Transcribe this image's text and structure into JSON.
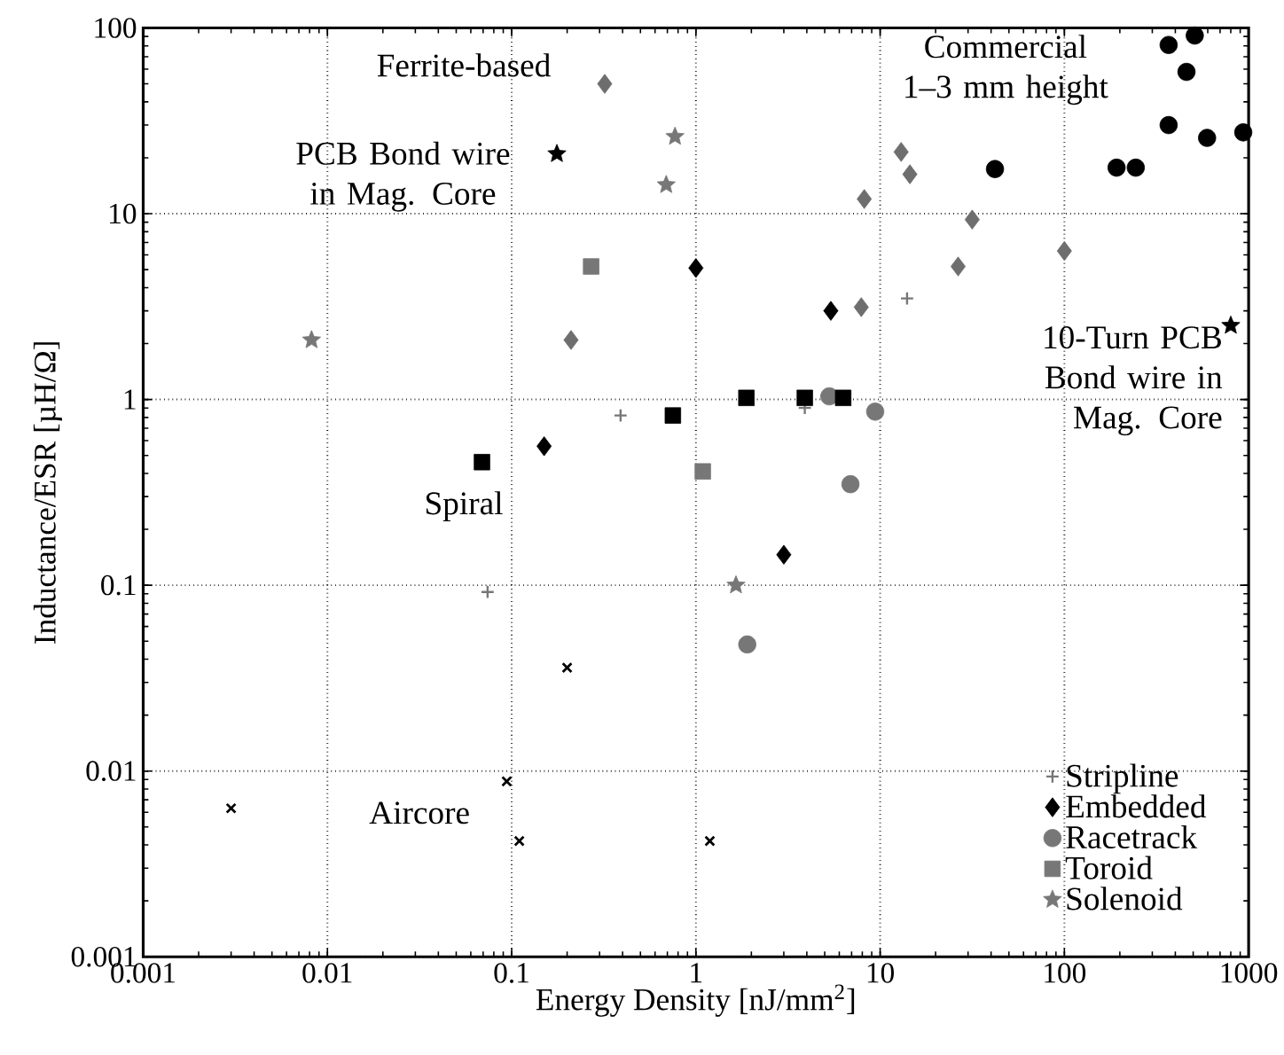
{
  "chart_data": {
    "type": "scatter",
    "xlabel": "Energy Density [nJ/mm$^{2}$]",
    "ylabel": "Inductance/ESR [µH/Ω]",
    "log": "xy",
    "grid": true,
    "legend": "bottom right",
    "xlim": [
      0.001,
      1000
    ],
    "ylim": [
      0.001,
      100
    ],
    "xticks": [
      0.001,
      0.01,
      0.1,
      1,
      10,
      100,
      1000
    ],
    "yticks": [
      0.001,
      0.01,
      0.1,
      1,
      10,
      100
    ],
    "series": [
      {
        "name": "Stripline",
        "color": "#777777",
        "marker": "plus",
        "x": [
          0.074,
          0.39,
          3.9,
          14
        ],
        "values": [
          0.092,
          0.82,
          0.9,
          3.5
        ]
      },
      {
        "name": "Embedded",
        "color": "#000000",
        "marker": "diamond",
        "x": [
          0.15,
          1.0,
          3.0,
          5.4
        ],
        "values": [
          0.56,
          5.1,
          0.146,
          3.0
        ]
      },
      {
        "name": "Racetrack",
        "color": "#777777",
        "marker": "circle",
        "x": [
          1.9,
          5.3,
          6.9,
          9.4
        ],
        "values": [
          0.048,
          1.04,
          0.35,
          0.86
        ]
      },
      {
        "name": "Toroid",
        "color": "#777777",
        "marker": "square",
        "x": [
          0.27,
          1.09
        ],
        "values": [
          5.2,
          0.41
        ]
      },
      {
        "name": "Solenoid",
        "color": "#777777",
        "marker": "star",
        "x": [
          0.0082,
          0.69,
          0.77,
          1.65
        ],
        "values": [
          2.09,
          14.3,
          26,
          0.1
        ]
      },
      {
        "color": "#6e6e6e",
        "marker": "diamond",
        "x": [
          0.32,
          0.21,
          13,
          14.5,
          8.2,
          31.6,
          100,
          26.5,
          7.9
        ],
        "values": [
          50,
          2.09,
          21.5,
          16.3,
          12,
          9.3,
          6.3,
          5.2,
          3.14
        ]
      },
      {
        "color": "#000000",
        "marker": "circle",
        "x": [
          42,
          192,
          244,
          368,
          510,
          460,
          368,
          595,
          935
        ],
        "values": [
          17.4,
          17.7,
          17.7,
          81,
          91,
          58,
          30,
          25.6,
          27.4
        ]
      },
      {
        "color": "#000000",
        "marker": "square",
        "x": [
          0.069,
          0.75,
          1.88,
          3.9,
          6.3
        ],
        "values": [
          0.46,
          0.82,
          1.02,
          1.02,
          1.02
        ]
      },
      {
        "color": "#000000",
        "marker": "star",
        "x": [
          0.176,
          800
        ],
        "values": [
          21,
          2.5
        ]
      },
      {
        "color": "#000000",
        "marker": "cross",
        "x": [
          0.003,
          0.094,
          0.11,
          0.2,
          1.19
        ],
        "values": [
          0.0063,
          0.0088,
          0.0042,
          0.036,
          0.0042
        ]
      }
    ],
    "annotations": [
      "Ferrite-based",
      "PCB Bond wire in Mag. Core",
      "Commercial 1–3 mm height",
      "10-Turn PCB Bond wire in Mag. Core",
      "Spiral",
      "Aircore"
    ]
  }
}
